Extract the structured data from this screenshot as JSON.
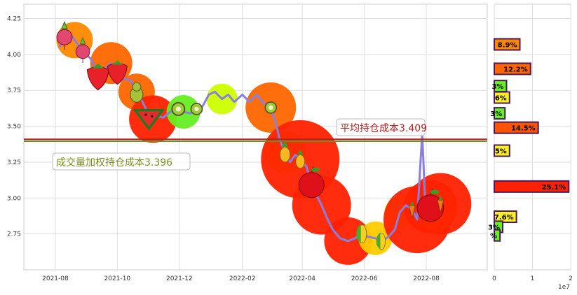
{
  "chart_data": [
    {
      "type": "line",
      "title": "",
      "xlabel": "",
      "ylabel": "",
      "x_tick_labels": [
        "2021-08",
        "2021-10",
        "2021-12",
        "2022-02",
        "2022-04",
        "2022-06",
        "2022-08"
      ],
      "x_tick_dates": [
        "2021-08-01",
        "2021-10-01",
        "2021-12-01",
        "2022-02-01",
        "2022-04-01",
        "2022-06-01",
        "2022-08-01"
      ],
      "xlim": [
        "2021-07-01",
        "2022-09-30"
      ],
      "y_ticks": [
        2.75,
        3.0,
        3.25,
        3.5,
        3.75,
        4.0,
        4.25
      ],
      "y_tick_labels": [
        "2.75",
        "3.00",
        "3.25",
        "3.50",
        "3.75",
        "4.00",
        "4.25"
      ],
      "ylim": [
        2.5,
        4.35
      ],
      "grid": true,
      "series": [
        {
          "color": "#8a7fe0",
          "points": [
            [
              "2021-08-05",
              4.05
            ],
            [
              "2021-08-10",
              4.12
            ],
            [
              "2021-08-15",
              4.15
            ],
            [
              "2021-08-20",
              4.1
            ],
            [
              "2021-08-28",
              4.02
            ],
            [
              "2021-09-05",
              3.97
            ],
            [
              "2021-09-12",
              3.85
            ],
            [
              "2021-09-18",
              3.9
            ],
            [
              "2021-09-25",
              3.94
            ],
            [
              "2021-10-01",
              3.88
            ],
            [
              "2021-10-08",
              3.83
            ],
            [
              "2021-10-14",
              3.82
            ],
            [
              "2021-10-20",
              3.74
            ],
            [
              "2021-10-25",
              3.68
            ],
            [
              "2021-11-01",
              3.58
            ],
            [
              "2021-11-05",
              3.55
            ],
            [
              "2021-11-10",
              3.57
            ],
            [
              "2021-11-15",
              3.56
            ],
            [
              "2021-11-22",
              3.6
            ],
            [
              "2021-11-30",
              3.62
            ],
            [
              "2021-12-05",
              3.6
            ],
            [
              "2021-12-12",
              3.59
            ],
            [
              "2021-12-18",
              3.62
            ],
            [
              "2021-12-24",
              3.64
            ],
            [
              "2021-12-30",
              3.72
            ],
            [
              "2022-01-05",
              3.74
            ],
            [
              "2022-01-12",
              3.69
            ],
            [
              "2022-01-18",
              3.72
            ],
            [
              "2022-01-24",
              3.67
            ],
            [
              "2022-02-01",
              3.72
            ],
            [
              "2022-02-08",
              3.67
            ],
            [
              "2022-02-15",
              3.72
            ],
            [
              "2022-02-22",
              3.66
            ],
            [
              "2022-03-01",
              3.63
            ],
            [
              "2022-03-06",
              3.52
            ],
            [
              "2022-03-10",
              3.4
            ],
            [
              "2022-03-15",
              3.32
            ],
            [
              "2022-03-20",
              3.25
            ],
            [
              "2022-03-25",
              3.3
            ],
            [
              "2022-03-30",
              3.27
            ],
            [
              "2022-04-05",
              3.22
            ],
            [
              "2022-04-10",
              3.1
            ],
            [
              "2022-04-15",
              3.02
            ],
            [
              "2022-04-20",
              2.95
            ],
            [
              "2022-04-26",
              2.85
            ],
            [
              "2022-05-01",
              2.78
            ],
            [
              "2022-05-08",
              2.72
            ],
            [
              "2022-05-16",
              2.7
            ],
            [
              "2022-05-23",
              2.72
            ],
            [
              "2022-05-30",
              2.75
            ],
            [
              "2022-06-05",
              2.73
            ],
            [
              "2022-06-12",
              2.72
            ],
            [
              "2022-06-18",
              2.7
            ],
            [
              "2022-06-25",
              2.73
            ],
            [
              "2022-07-01",
              2.78
            ],
            [
              "2022-07-06",
              2.9
            ],
            [
              "2022-07-12",
              2.95
            ],
            [
              "2022-07-18",
              2.92
            ],
            [
              "2022-07-23",
              2.85
            ],
            [
              "2022-07-28",
              3.45
            ],
            [
              "2022-07-31",
              2.95
            ],
            [
              "2022-08-05",
              2.94
            ],
            [
              "2022-08-10",
              2.92
            ],
            [
              "2022-08-15",
              2.96
            ]
          ]
        }
      ],
      "reference_lines": [
        {
          "value": 3.409,
          "label": "平均持仓成本3.409",
          "color": "#b22222",
          "text_color": "#b22222"
        },
        {
          "value": 3.396,
          "label": "成交量加权持仓成本3.396",
          "color": "#6b8e23",
          "text_color": "#7a8e23"
        }
      ],
      "bubble_colors": [
        "#ff2200",
        "#ff6600",
        "#ff8800",
        "#ffcc00",
        "#ccff00",
        "#66ee22"
      ],
      "icons": [
        "radish-icon",
        "strawberry-icon",
        "pear-icon",
        "watermelon-icon",
        "kiwi-icon",
        "pineapple-icon",
        "apple-icon",
        "corn-icon",
        "carrot-icon"
      ]
    },
    {
      "type": "bar",
      "orientation": "horizontal",
      "xlabel": "",
      "x_ticks": [
        0,
        10000000,
        20000000
      ],
      "x_tick_labels": [
        "0",
        "1",
        "2"
      ],
      "x_offset_label": "1e7",
      "xlim": [
        0,
        20000000
      ],
      "bars": [
        {
          "price": 4.07,
          "label": "8.9%",
          "value": 6700000,
          "color": "#ff8800"
        },
        {
          "price": 3.9,
          "label": "12.2%",
          "value": 9500000,
          "color": "#ff6600"
        },
        {
          "price": 3.78,
          "label": "3%",
          "value": 3200000,
          "color": "#66ee22"
        },
        {
          "price": 3.7,
          "label": "6%",
          "value": 4000000,
          "color": "#ffee22"
        },
        {
          "price": 3.59,
          "label": "3%",
          "value": 2800000,
          "color": "#66ee22"
        },
        {
          "price": 3.49,
          "label": "14.5%",
          "value": 11500000,
          "color": "#ff5500"
        },
        {
          "price": 3.33,
          "label": "5%",
          "value": 4000000,
          "color": "#ffee22"
        },
        {
          "price": 3.08,
          "label": "25.1%",
          "value": 19500000,
          "color": "#ff2200"
        },
        {
          "price": 2.87,
          "label": "7.6%",
          "value": 5800000,
          "color": "#ffee22"
        },
        {
          "price": 2.8,
          "label": "3%",
          "value": 2200000,
          "color": "#66ee22"
        },
        {
          "price": 2.74,
          "label": "%",
          "value": 1500000,
          "color": "#66ee22"
        }
      ]
    }
  ]
}
